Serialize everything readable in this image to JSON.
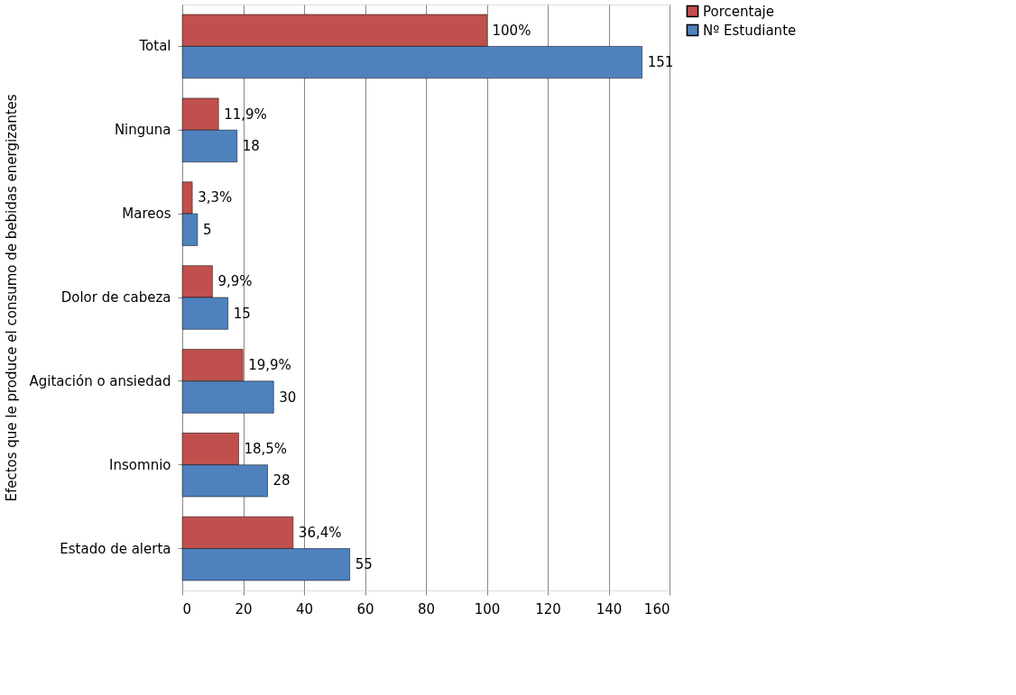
{
  "chart_data": {
    "type": "bar",
    "orientation": "horizontal",
    "ylabel": "Efectos que le produce el consumo de bebidas energizantes",
    "categories": [
      "Total",
      "Ninguna",
      "Mareos",
      "Dolor de cabeza",
      "Agitación o ansiedad",
      "Insomnio",
      "Estado de alerta"
    ],
    "series": [
      {
        "name": "Porcentaje",
        "color": "#c0504d",
        "values": [
          100,
          11.9,
          3.3,
          9.9,
          19.9,
          18.5,
          36.4
        ],
        "value_labels": [
          "100%",
          "11,9%",
          "3,3%",
          "9,9%",
          "19,9%",
          "18,5%",
          "36,4%"
        ]
      },
      {
        "name": "Nº Estudiante",
        "color": "#4f81bd",
        "values": [
          151,
          18,
          5,
          15,
          30,
          28,
          55
        ],
        "value_labels": [
          "151",
          "18",
          "5",
          "15",
          "30",
          "28",
          "55"
        ]
      }
    ],
    "xlim": [
      0,
      160
    ],
    "xticks": [
      0,
      20,
      40,
      60,
      80,
      100,
      120,
      140,
      160
    ],
    "grid": "x",
    "legend": "right"
  }
}
